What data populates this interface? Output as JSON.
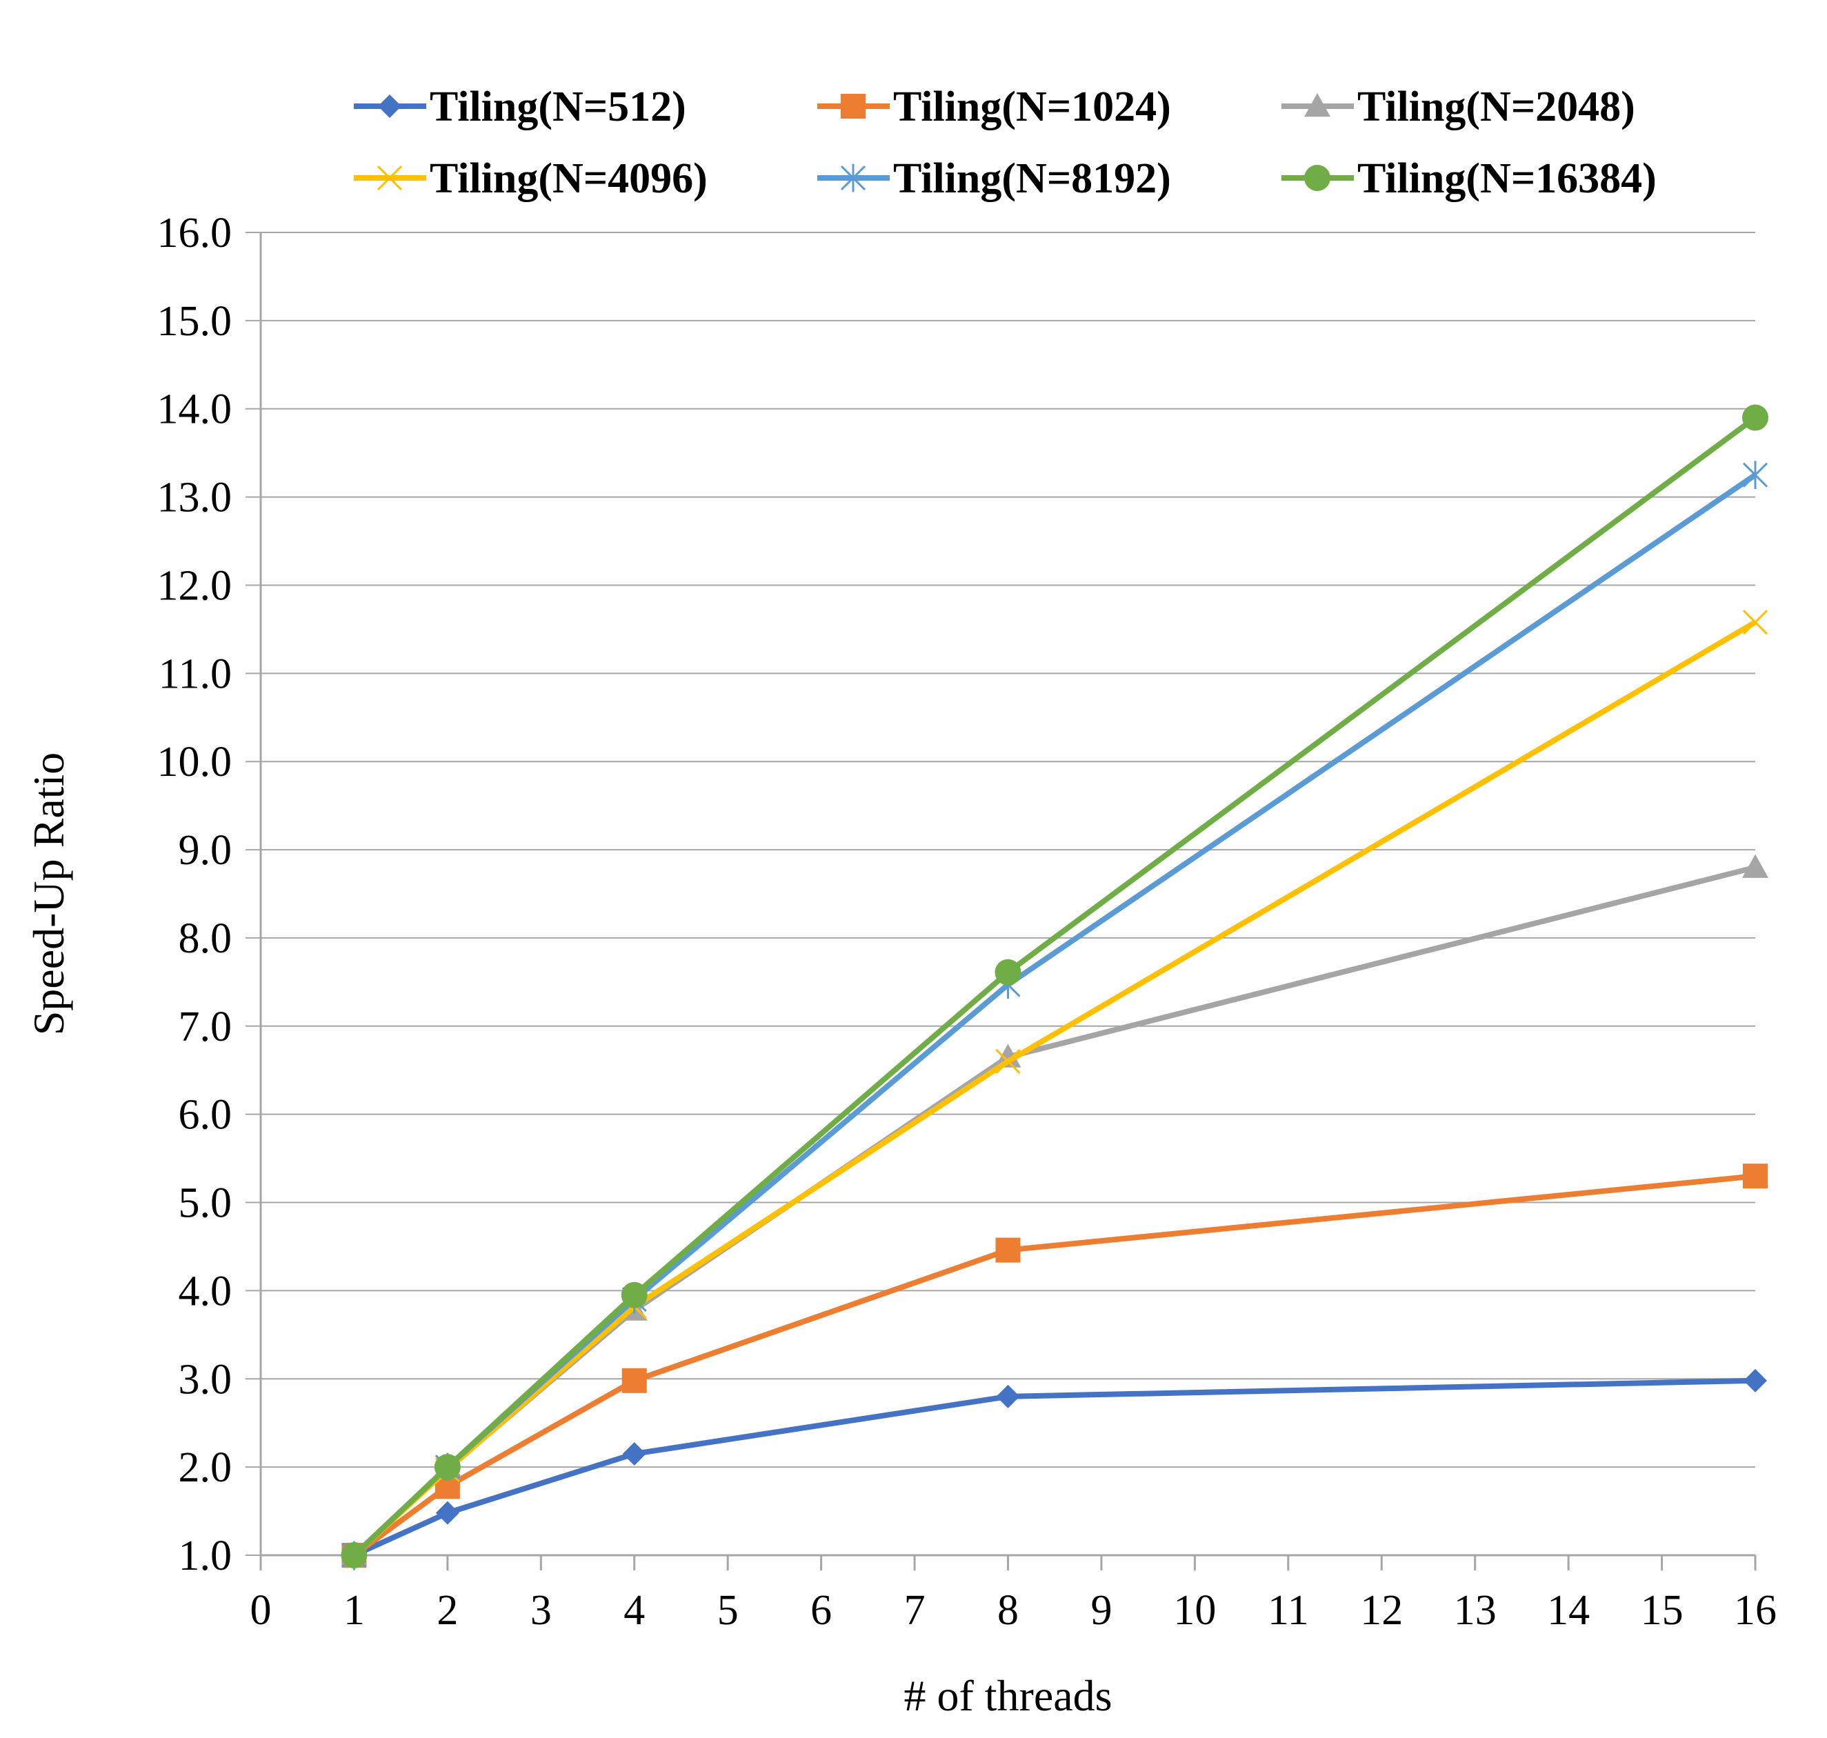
{
  "chart_data": {
    "type": "line",
    "xlabel": "# of threads",
    "ylabel": "Speed-Up Ratio",
    "xlim": [
      0,
      16
    ],
    "ylim": [
      1.0,
      16.0
    ],
    "x_ticks": [
      "0",
      "1",
      "2",
      "3",
      "4",
      "5",
      "6",
      "7",
      "8",
      "9",
      "10",
      "11",
      "12",
      "13",
      "14",
      "15",
      "16"
    ],
    "y_ticks": [
      "1.0",
      "2.0",
      "3.0",
      "4.0",
      "5.0",
      "6.0",
      "7.0",
      "8.0",
      "9.0",
      "10.0",
      "11.0",
      "12.0",
      "13.0",
      "14.0",
      "15.0",
      "16.0"
    ],
    "grid": "horizontal",
    "legend_position": "top",
    "x": [
      1,
      2,
      4,
      8,
      16
    ],
    "series": [
      {
        "name": "Tiling(N=512)",
        "color": "#4472c4",
        "marker": "diamond",
        "values": [
          1.0,
          1.48,
          2.15,
          2.8,
          2.98
        ]
      },
      {
        "name": "Tiling(N=1024)",
        "color": "#ed7d31",
        "marker": "square",
        "values": [
          1.0,
          1.78,
          2.98,
          4.46,
          5.3
        ]
      },
      {
        "name": "Tiling(N=2048)",
        "color": "#a5a5a5",
        "marker": "triangle",
        "values": [
          1.0,
          1.98,
          3.78,
          6.65,
          8.8
        ]
      },
      {
        "name": "Tiling(N=4096)",
        "color": "#ffc000",
        "marker": "x",
        "values": [
          1.0,
          1.97,
          3.82,
          6.6,
          11.58
        ]
      },
      {
        "name": "Tiling(N=8192)",
        "color": "#5b9bd5",
        "marker": "star",
        "values": [
          1.0,
          2.0,
          3.9,
          7.47,
          13.25
        ]
      },
      {
        "name": "Tiling(N=16384)",
        "color": "#70ad47",
        "marker": "circle",
        "values": [
          1.0,
          2.0,
          3.95,
          7.61,
          13.9
        ]
      }
    ]
  }
}
